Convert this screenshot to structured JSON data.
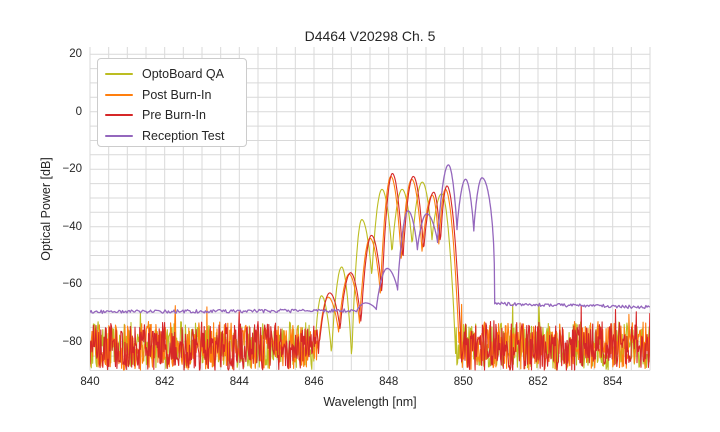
{
  "chart_data": {
    "type": "line",
    "title": "D4464 V20298 Ch. 5",
    "xlabel": "Wavelength [nm]",
    "ylabel": "Optical Power [dB]",
    "xlim": [
      840,
      855
    ],
    "ylim": [
      -90,
      22.5
    ],
    "x_ticks": [
      840,
      842,
      844,
      846,
      848,
      850,
      852,
      854
    ],
    "x_tick_labels": [
      "840",
      "842",
      "844",
      "846",
      "848",
      "850",
      "852",
      "854"
    ],
    "y_ticks": [
      20,
      0,
      -20,
      -40,
      -60,
      -80
    ],
    "y_tick_labels": [
      "20",
      "0",
      "−20",
      "−40",
      "−60",
      "−80"
    ],
    "grid": {
      "show": true,
      "x_spacing_nm": 0.5,
      "y_spacing_db": 5,
      "color": "#d9d9d9"
    },
    "legend": {
      "position": "upper left"
    },
    "background_color": "#ffffff",
    "text_color": "#262626",
    "series": [
      {
        "name": "OptoBoard QA",
        "color": "#bcbd22",
        "style": "noisy-spectrum",
        "noise_floor": {
          "top_db": -72.3,
          "spread_db": 16.5,
          "ranges_nm": [
            [
              840,
              846.4
            ],
            [
              849.8,
              855
            ]
          ]
        },
        "mode_region_nm": [
          846.0,
          849.8
        ],
        "peaks_nm_db": [
          [
            846.2,
            -64
          ],
          [
            846.74,
            -54
          ],
          [
            847.28,
            -37.5
          ],
          [
            847.82,
            -27
          ],
          [
            848.36,
            -27
          ],
          [
            848.9,
            -24.5
          ],
          [
            849.42,
            -28.5
          ]
        ],
        "dips_db": [
          -85,
          -87,
          -58,
          -50,
          -47,
          -45
        ],
        "seed": 101
      },
      {
        "name": "Post Burn-In",
        "color": "#ff7f0e",
        "style": "noisy-spectrum",
        "noise_floor": {
          "top_db": -72.4,
          "spread_db": 16.5,
          "ranges_nm": [
            [
              840,
              846.68
            ],
            [
              849.9,
              855
            ]
          ]
        },
        "mode_region_nm": [
          846.08,
          849.9
        ],
        "peaks_nm_db": [
          [
            846.38,
            -64.5
          ],
          [
            846.94,
            -56.5
          ],
          [
            847.5,
            -44
          ],
          [
            848.06,
            -22.5
          ],
          [
            848.62,
            -23.5
          ],
          [
            849.17,
            -29
          ],
          [
            849.52,
            -27
          ]
        ],
        "dips_db": [
          -77,
          -74,
          -64,
          -53,
          -49.5,
          -47
        ],
        "seed": 202
      },
      {
        "name": "Pre Burn-In",
        "color": "#d62728",
        "style": "noisy-spectrum",
        "noise_floor": {
          "top_db": -72.6,
          "spread_db": 16.8,
          "ranges_nm": [
            [
              840,
              846.7
            ],
            [
              849.95,
              855
            ]
          ]
        },
        "mode_region_nm": [
          846.1,
          849.95
        ],
        "peaks_nm_db": [
          [
            846.42,
            -63
          ],
          [
            846.98,
            -56
          ],
          [
            847.54,
            -43
          ],
          [
            848.1,
            -21.5
          ],
          [
            848.66,
            -22.5
          ],
          [
            849.21,
            -28
          ],
          [
            849.56,
            -25.8
          ]
        ],
        "dips_db": [
          -76,
          -74,
          -64,
          -52.5,
          -49,
          -46.5
        ],
        "seed": 303
      },
      {
        "name": "Reception Test",
        "color": "#9467bd",
        "style": "smooth-spectrum",
        "floor_left_db": -69.6,
        "floor_right_db": -66.8,
        "floor_noise_db": 0.6,
        "mode_region_nm": [
          847.15,
          850.84
        ],
        "peaks_nm_db": [
          [
            847.38,
            -66.5
          ],
          [
            847.96,
            -54.5
          ],
          [
            848.52,
            -34.5
          ],
          [
            849.02,
            -35.5
          ],
          [
            849.6,
            -18.5
          ],
          [
            850.06,
            -23.5
          ],
          [
            850.5,
            -23
          ]
        ],
        "dips_db": [
          -68.8,
          -62,
          -48,
          -45.5,
          -41,
          -41.5
        ],
        "cutoff_nm": 850.7,
        "seed": 404
      }
    ]
  }
}
